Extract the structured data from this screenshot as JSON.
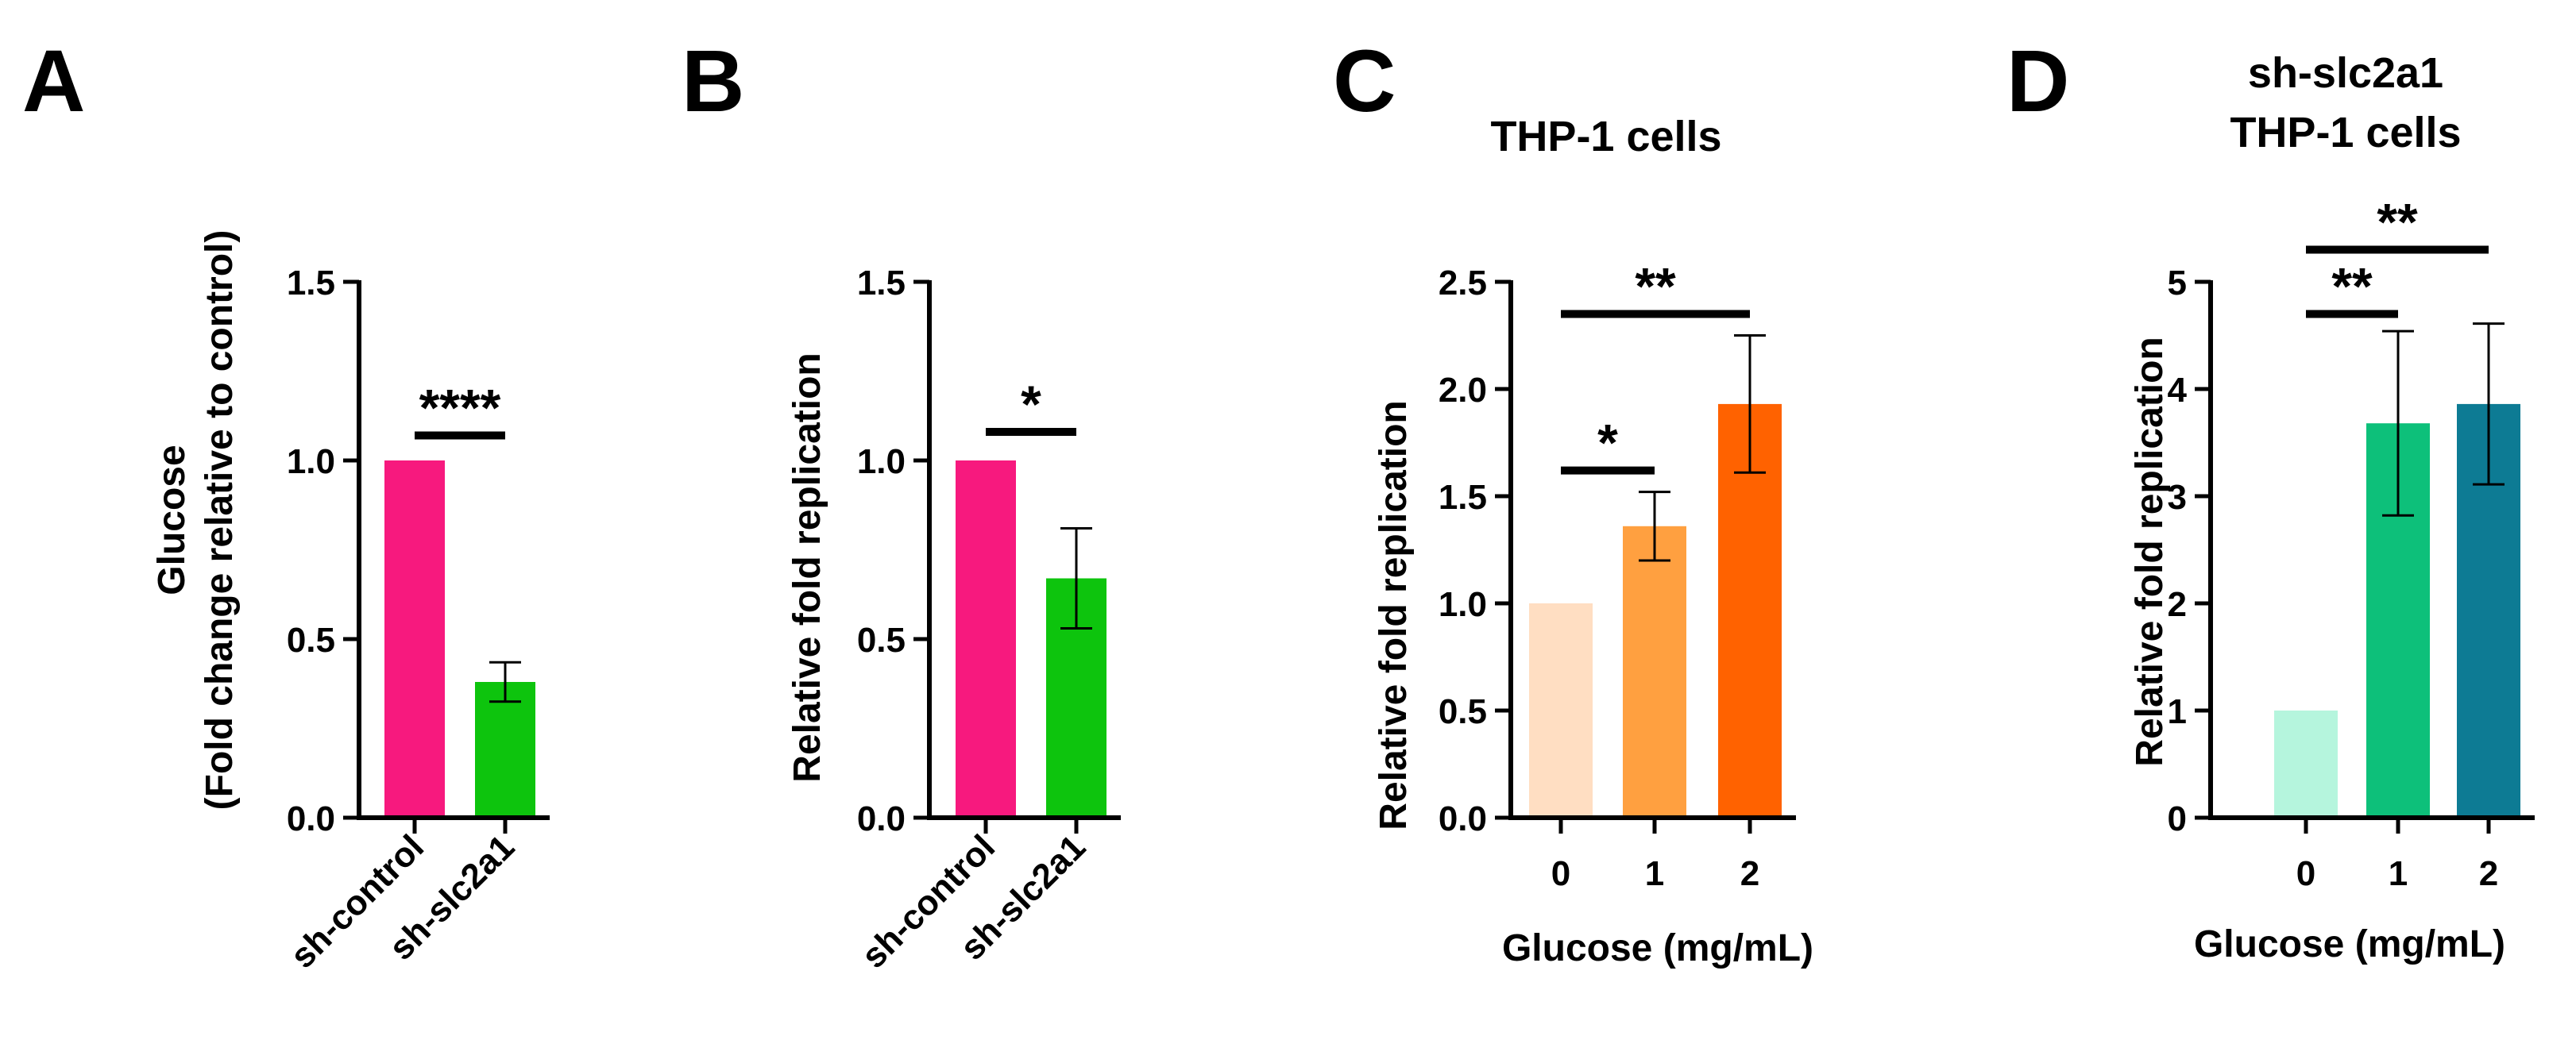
{
  "figure": {
    "panels": [
      {
        "letter": "A",
        "title_lines": []
      },
      {
        "letter": "B",
        "title_lines": []
      },
      {
        "letter": "C",
        "title_lines": [
          "THP-1 cells"
        ]
      },
      {
        "letter": "D",
        "title_lines": [
          "sh-slc2a1",
          "THP-1 cells"
        ]
      }
    ]
  },
  "chart_data": [
    {
      "type": "bar",
      "panel": "A",
      "title": "",
      "xlabel": "",
      "ylabel_lines": [
        "Glucose",
        "(Fold change relative to control)"
      ],
      "categories": [
        "sh-control",
        "sh-slc2a1"
      ],
      "values": [
        1.0,
        0.38
      ],
      "errors": [
        0,
        0.055
      ],
      "colors": [
        "#F7197E",
        "#0DC40D"
      ],
      "ylim": [
        0,
        1.5
      ],
      "yticks": [
        0.0,
        0.5,
        1.0,
        1.5
      ],
      "ytick_labels": [
        "0.0",
        "0.5",
        "1.0",
        "1.5"
      ],
      "rotated_xticks": true,
      "significance": [
        {
          "from": 0,
          "to": 1,
          "y": 1.07,
          "label": "****"
        }
      ]
    },
    {
      "type": "bar",
      "panel": "B",
      "title": "",
      "xlabel": "",
      "ylabel_lines": [
        "Relative fold replication"
      ],
      "categories": [
        "sh-control",
        "sh-slc2a1"
      ],
      "values": [
        1.0,
        0.67
      ],
      "errors": [
        0,
        0.14
      ],
      "colors": [
        "#F7197E",
        "#0DC40D"
      ],
      "ylim": [
        0,
        1.5
      ],
      "yticks": [
        0.0,
        0.5,
        1.0,
        1.5
      ],
      "ytick_labels": [
        "0.0",
        "0.5",
        "1.0",
        "1.5"
      ],
      "rotated_xticks": true,
      "significance": [
        {
          "from": 0,
          "to": 1,
          "y": 1.08,
          "label": "*"
        }
      ]
    },
    {
      "type": "bar",
      "panel": "C",
      "title": "THP-1 cells",
      "xlabel": "Glucose (mg/mL)",
      "ylabel_lines": [
        "Relative fold replication"
      ],
      "categories": [
        "0",
        "1",
        "2"
      ],
      "values": [
        1.0,
        1.36,
        1.93
      ],
      "errors": [
        0,
        0.16,
        0.32
      ],
      "colors": [
        "#FFDEC2",
        "#FFA040",
        "#FF6200"
      ],
      "ylim": [
        0,
        2.5
      ],
      "yticks": [
        0.0,
        0.5,
        1.0,
        1.5,
        2.0,
        2.5
      ],
      "ytick_labels": [
        "0.0",
        "0.5",
        "1.0",
        "1.5",
        "2.0",
        "2.5"
      ],
      "rotated_xticks": false,
      "significance": [
        {
          "from": 0,
          "to": 1,
          "y": 1.62,
          "label": "*"
        },
        {
          "from": 0,
          "to": 2,
          "y": 2.35,
          "label": "**"
        }
      ]
    },
    {
      "type": "bar",
      "panel": "D",
      "title": "sh-slc2a1 THP-1 cells",
      "xlabel": "Glucose (mg/mL)",
      "ylabel_lines": [
        "Relative fold replication"
      ],
      "categories": [
        "0",
        "1",
        "2"
      ],
      "values": [
        1.0,
        3.68,
        3.86
      ],
      "errors": [
        0,
        0.86,
        0.75
      ],
      "colors": [
        "#B5F5DD",
        "#0DC07A",
        "#0D7B94"
      ],
      "ylim": [
        0,
        5
      ],
      "yticks": [
        0,
        1,
        2,
        3,
        4,
        5
      ],
      "ytick_labels": [
        "0",
        "1",
        "2",
        "3",
        "4",
        "5"
      ],
      "rotated_xticks": false,
      "significance": [
        {
          "from": 0,
          "to": 1,
          "y": 4.7,
          "label": "**"
        },
        {
          "from": 0,
          "to": 2,
          "y": 5.3,
          "label": "**"
        }
      ]
    }
  ]
}
